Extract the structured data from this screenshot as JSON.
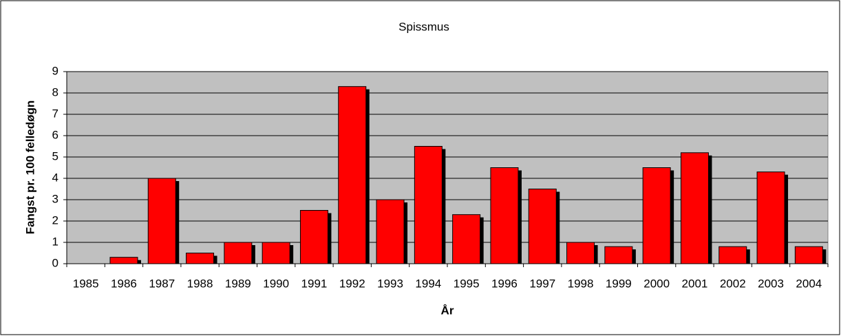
{
  "chart_data": {
    "type": "bar",
    "title": "Spissmus",
    "x_label": "År",
    "y_label": "Fangst pr. 100 felledøgn",
    "categories": [
      "1985",
      "1986",
      "1987",
      "1988",
      "1989",
      "1990",
      "1991",
      "1992",
      "1993",
      "1994",
      "1995",
      "1996",
      "1997",
      "1998",
      "1999",
      "2000",
      "2001",
      "2002",
      "2003",
      "2004"
    ],
    "values": [
      0,
      0.3,
      4,
      0.5,
      1,
      1,
      2.5,
      8.3,
      3,
      5.5,
      2.3,
      4.5,
      3.5,
      1,
      0.8,
      4.5,
      5.2,
      0.8,
      4.3,
      0.8
    ],
    "color": "#ff0000",
    "ylim": [
      0,
      9
    ],
    "yticks": [
      0,
      1,
      2,
      3,
      4,
      5,
      6,
      7,
      8,
      9
    ],
    "grid": true
  }
}
